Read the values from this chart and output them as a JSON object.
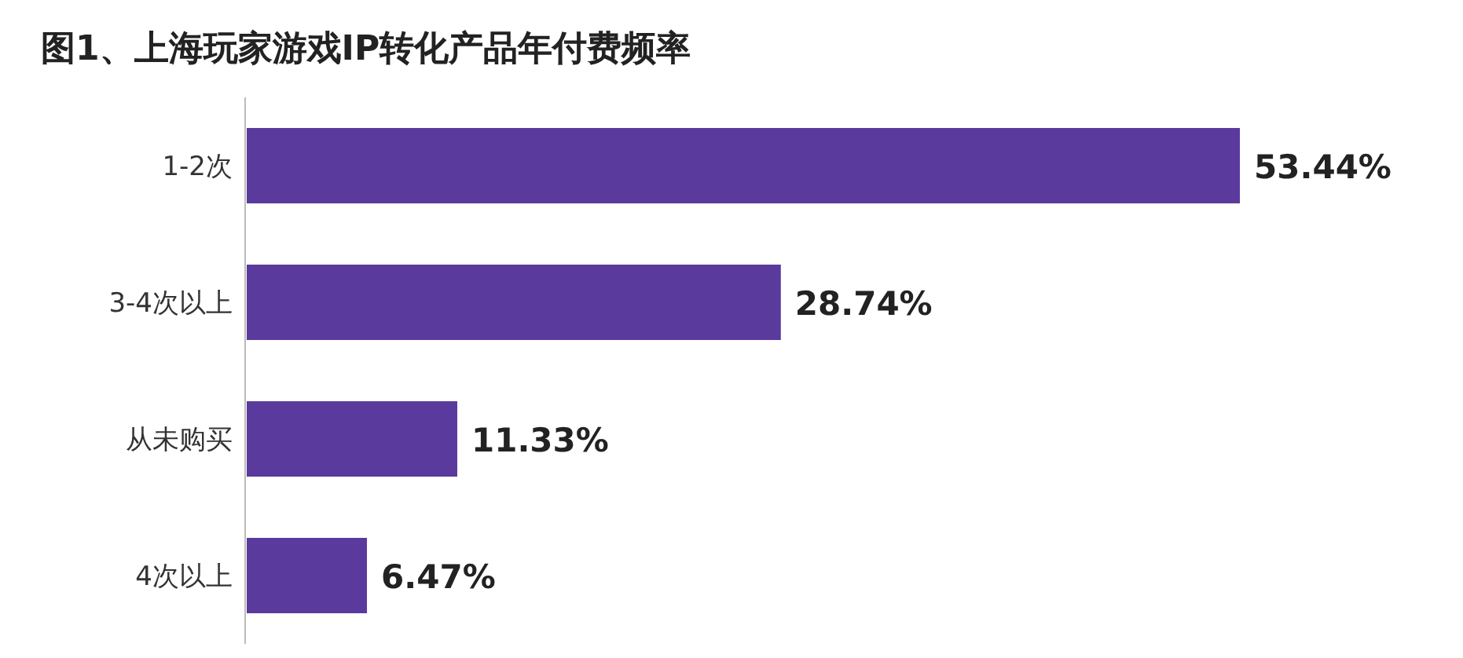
{
  "chart_data": {
    "type": "bar",
    "orientation": "horizontal",
    "title": "图1、上海玩家游戏IP转化产品年付费频率",
    "categories": [
      "1-2次",
      "3-4次以上",
      "从未购买",
      "4次以上"
    ],
    "values": [
      53.44,
      28.74,
      11.33,
      6.47
    ],
    "value_labels": [
      "53.44%",
      "28.74%",
      "11.33%",
      "6.47%"
    ],
    "color": "#5a3a9c"
  }
}
